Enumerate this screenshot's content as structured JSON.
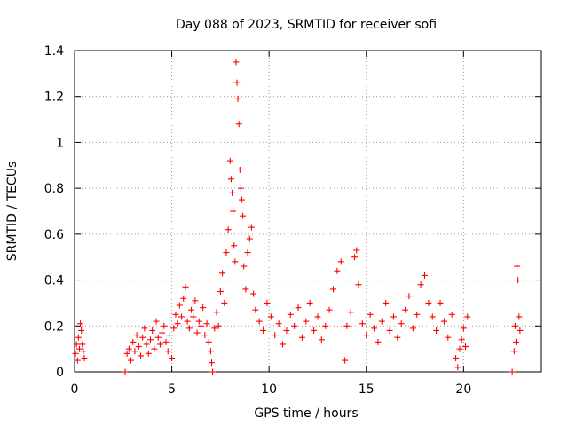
{
  "chart_data": {
    "type": "scatter",
    "title": "Day 088 of 2023, SRMTID for receiver sofi",
    "xlabel": "GPS time / hours",
    "ylabel": "SRMTID / TECUs",
    "xlim": [
      0,
      24
    ],
    "ylim": [
      0,
      1.4
    ],
    "xticks": [
      0,
      5,
      10,
      15,
      20
    ],
    "xtick_labels": [
      "0",
      "5",
      "10",
      "15",
      "20"
    ],
    "yticks": [
      0,
      0.2,
      0.4,
      0.6,
      0.8,
      1,
      1.2,
      1.4
    ],
    "ytick_labels": [
      "0",
      "0.2",
      "0.4",
      "0.6",
      "0.8",
      "1",
      "1.2",
      "1.4"
    ],
    "grid": true,
    "marker": "+",
    "series": [
      {
        "name": "SRMTID",
        "color": "#ff0000",
        "points": [
          [
            0.05,
            0.08
          ],
          [
            0.1,
            0.12
          ],
          [
            0.15,
            0.05
          ],
          [
            0.2,
            0.15
          ],
          [
            0.25,
            0.1
          ],
          [
            0.3,
            0.21
          ],
          [
            0.35,
            0.18
          ],
          [
            0.4,
            0.12
          ],
          [
            0.45,
            0.09
          ],
          [
            0.5,
            0.06
          ],
          [
            2.6,
            0.0
          ],
          [
            2.7,
            0.08
          ],
          [
            2.8,
            0.1
          ],
          [
            2.9,
            0.05
          ],
          [
            3.0,
            0.13
          ],
          [
            3.1,
            0.09
          ],
          [
            3.2,
            0.16
          ],
          [
            3.3,
            0.11
          ],
          [
            3.4,
            0.07
          ],
          [
            3.5,
            0.15
          ],
          [
            3.6,
            0.19
          ],
          [
            3.7,
            0.12
          ],
          [
            3.8,
            0.08
          ],
          [
            3.9,
            0.14
          ],
          [
            4.0,
            0.18
          ],
          [
            4.1,
            0.1
          ],
          [
            4.2,
            0.22
          ],
          [
            4.3,
            0.15
          ],
          [
            4.4,
            0.12
          ],
          [
            4.5,
            0.17
          ],
          [
            4.6,
            0.2
          ],
          [
            4.7,
            0.13
          ],
          [
            4.8,
            0.09
          ],
          [
            4.9,
            0.16
          ],
          [
            5.0,
            0.06
          ],
          [
            5.1,
            0.19
          ],
          [
            5.2,
            0.25
          ],
          [
            5.3,
            0.21
          ],
          [
            5.4,
            0.29
          ],
          [
            5.5,
            0.24
          ],
          [
            5.6,
            0.32
          ],
          [
            5.7,
            0.37
          ],
          [
            5.8,
            0.22
          ],
          [
            5.9,
            0.19
          ],
          [
            6.0,
            0.27
          ],
          [
            6.1,
            0.24
          ],
          [
            6.2,
            0.31
          ],
          [
            6.3,
            0.17
          ],
          [
            6.4,
            0.22
          ],
          [
            6.5,
            0.2
          ],
          [
            6.6,
            0.28
          ],
          [
            6.7,
            0.16
          ],
          [
            6.8,
            0.21
          ],
          [
            6.9,
            0.13
          ],
          [
            7.0,
            0.09
          ],
          [
            7.05,
            0.04
          ],
          [
            7.1,
            0.0
          ],
          [
            7.2,
            0.19
          ],
          [
            7.3,
            0.26
          ],
          [
            7.4,
            0.2
          ],
          [
            7.5,
            0.35
          ],
          [
            7.6,
            0.43
          ],
          [
            7.7,
            0.3
          ],
          [
            7.8,
            0.52
          ],
          [
            7.9,
            0.62
          ],
          [
            8.0,
            0.92
          ],
          [
            8.05,
            0.84
          ],
          [
            8.1,
            0.78
          ],
          [
            8.15,
            0.7
          ],
          [
            8.2,
            0.55
          ],
          [
            8.25,
            0.48
          ],
          [
            8.3,
            1.35
          ],
          [
            8.35,
            1.26
          ],
          [
            8.4,
            1.19
          ],
          [
            8.45,
            1.08
          ],
          [
            8.5,
            0.88
          ],
          [
            8.55,
            0.8
          ],
          [
            8.6,
            0.75
          ],
          [
            8.65,
            0.68
          ],
          [
            8.7,
            0.46
          ],
          [
            8.8,
            0.36
          ],
          [
            8.9,
            0.52
          ],
          [
            9.0,
            0.58
          ],
          [
            9.1,
            0.63
          ],
          [
            9.2,
            0.34
          ],
          [
            9.3,
            0.27
          ],
          [
            9.5,
            0.22
          ],
          [
            9.7,
            0.18
          ],
          [
            9.9,
            0.3
          ],
          [
            10.1,
            0.24
          ],
          [
            10.3,
            0.16
          ],
          [
            10.5,
            0.21
          ],
          [
            10.7,
            0.12
          ],
          [
            10.9,
            0.18
          ],
          [
            11.1,
            0.25
          ],
          [
            11.3,
            0.2
          ],
          [
            11.5,
            0.28
          ],
          [
            11.7,
            0.15
          ],
          [
            11.9,
            0.22
          ],
          [
            12.1,
            0.3
          ],
          [
            12.3,
            0.18
          ],
          [
            12.5,
            0.24
          ],
          [
            12.7,
            0.14
          ],
          [
            12.9,
            0.2
          ],
          [
            13.1,
            0.27
          ],
          [
            13.3,
            0.36
          ],
          [
            13.5,
            0.44
          ],
          [
            13.7,
            0.48
          ],
          [
            13.9,
            0.05
          ],
          [
            14.0,
            0.2
          ],
          [
            14.2,
            0.26
          ],
          [
            14.4,
            0.5
          ],
          [
            14.5,
            0.53
          ],
          [
            14.6,
            0.38
          ],
          [
            14.8,
            0.21
          ],
          [
            15.0,
            0.16
          ],
          [
            15.2,
            0.25
          ],
          [
            15.4,
            0.19
          ],
          [
            15.6,
            0.13
          ],
          [
            15.8,
            0.22
          ],
          [
            16.0,
            0.3
          ],
          [
            16.2,
            0.18
          ],
          [
            16.4,
            0.24
          ],
          [
            16.6,
            0.15
          ],
          [
            16.8,
            0.21
          ],
          [
            17.0,
            0.27
          ],
          [
            17.2,
            0.33
          ],
          [
            17.4,
            0.19
          ],
          [
            17.6,
            0.25
          ],
          [
            17.8,
            0.38
          ],
          [
            18.0,
            0.42
          ],
          [
            18.2,
            0.3
          ],
          [
            18.4,
            0.24
          ],
          [
            18.6,
            0.18
          ],
          [
            18.8,
            0.3
          ],
          [
            19.0,
            0.22
          ],
          [
            19.2,
            0.15
          ],
          [
            19.4,
            0.25
          ],
          [
            19.6,
            0.06
          ],
          [
            19.7,
            0.02
          ],
          [
            19.8,
            0.1
          ],
          [
            19.9,
            0.14
          ],
          [
            20.0,
            0.19
          ],
          [
            20.1,
            0.11
          ],
          [
            20.2,
            0.24
          ],
          [
            22.5,
            0.0
          ],
          [
            22.6,
            0.09
          ],
          [
            22.65,
            0.2
          ],
          [
            22.7,
            0.13
          ],
          [
            22.75,
            0.46
          ],
          [
            22.8,
            0.4
          ],
          [
            22.85,
            0.24
          ],
          [
            22.9,
            0.18
          ]
        ]
      }
    ]
  }
}
